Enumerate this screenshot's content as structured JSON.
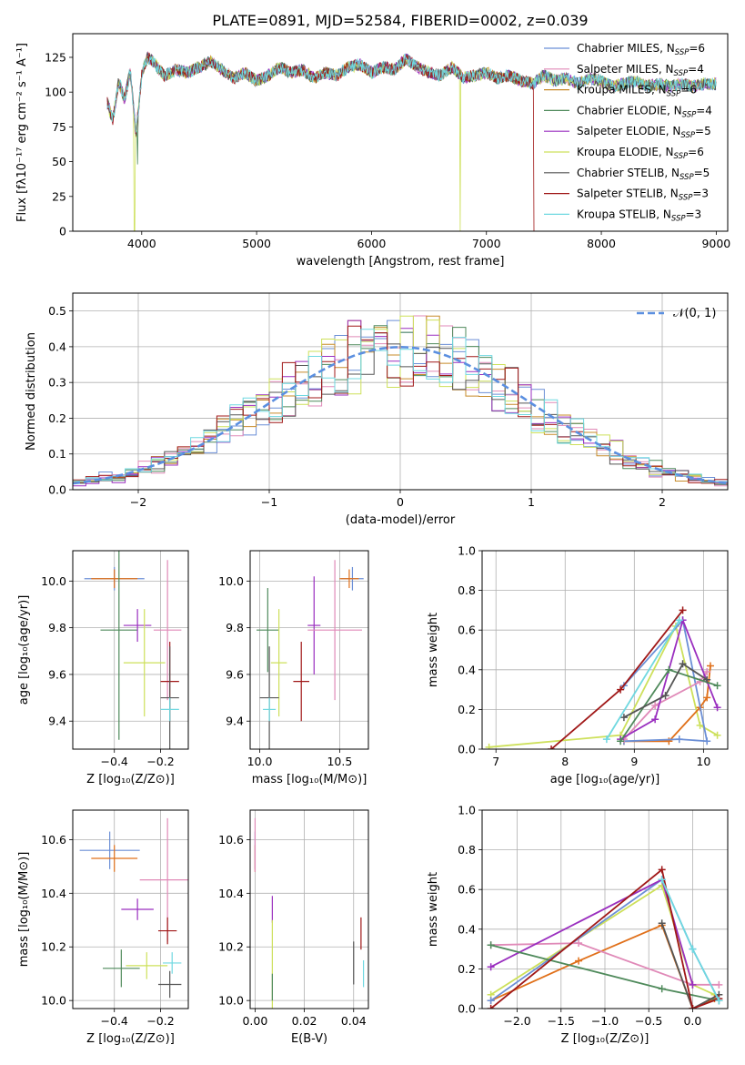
{
  "figure_title": "PLATE=0891, MJD=52584, FIBERID=0002, z=0.039",
  "legend_entries": [
    {
      "name": "Chabrier MILES, N",
      "sub": "SSP",
      "val": "=6",
      "color": "#6b8fd6"
    },
    {
      "name": "Salpeter MILES, N",
      "sub": "SSP",
      "val": "=4",
      "color": "#e08ab8"
    },
    {
      "name": "Kroupa MILES, N",
      "sub": "SSP",
      "val": "=6",
      "color": "#c78b2a"
    },
    {
      "name": "Chabrier ELODIE, N",
      "sub": "SSP",
      "val": "=4",
      "color": "#4f8a5b"
    },
    {
      "name": "Salpeter ELODIE, N",
      "sub": "SSP",
      "val": "=5",
      "color": "#9a2fbf"
    },
    {
      "name": "Kroupa ELODIE, N",
      "sub": "SSP",
      "val": "=6",
      "color": "#cde05a"
    },
    {
      "name": "Chabrier STELIB, N",
      "sub": "SSP",
      "val": "=5",
      "color": "#555555"
    },
    {
      "name": "Salpeter STELIB, N",
      "sub": "SSP",
      "val": "=3",
      "color": "#a01818"
    },
    {
      "name": "Kroupa STELIB, N",
      "sub": "SSP",
      "val": "=3",
      "color": "#6fd8e0"
    }
  ],
  "chart_data": [
    {
      "id": "spectrum",
      "type": "line",
      "xlabel": "wavelength [Angstrom, rest frame]",
      "ylabel": "Flux [fλ10⁻¹⁷ erg cm⁻² s⁻¹ A⁻¹]",
      "xlim": [
        3400,
        9100
      ],
      "ylim": [
        0,
        142
      ],
      "xticks": [
        4000,
        5000,
        6000,
        7000,
        8000,
        9000
      ],
      "yticks": [
        0,
        25,
        50,
        75,
        100,
        125
      ],
      "grid": false,
      "legend_position": "top-right",
      "series_envelope": {
        "x": [
          3700,
          3750,
          3800,
          3850,
          3900,
          3950,
          4000,
          4050,
          4100,
          4150,
          4200,
          4300,
          4400,
          4500,
          4600,
          4700,
          4800,
          4900,
          5000,
          5100,
          5200,
          5300,
          5400,
          5500,
          5600,
          5700,
          5800,
          5900,
          6000,
          6100,
          6200,
          6300,
          6400,
          6500,
          6600,
          6700,
          6800,
          6900,
          7000,
          7100,
          7200,
          7300,
          7400,
          7500,
          7600,
          7700,
          7800,
          7900,
          8000,
          8100,
          8200,
          8300,
          8400,
          8500,
          8600,
          8700,
          8800,
          8900,
          9000
        ],
        "y": [
          92,
          80,
          108,
          95,
          115,
          70,
          112,
          125,
          122,
          116,
          112,
          116,
          114,
          118,
          122,
          116,
          110,
          114,
          108,
          112,
          118,
          114,
          116,
          110,
          114,
          112,
          118,
          120,
          114,
          118,
          116,
          124,
          118,
          114,
          112,
          118,
          110,
          112,
          114,
          110,
          112,
          108,
          106,
          112,
          108,
          110,
          106,
          110,
          108,
          104,
          106,
          108,
          104,
          106,
          104,
          106,
          104,
          106,
          106
        ]
      },
      "dips": [
        [
          3935,
          0
        ],
        [
          3965,
          48
        ],
        [
          6770,
          0
        ],
        [
          7420,
          0
        ]
      ]
    },
    {
      "id": "residual-histogram",
      "type": "area",
      "xlabel": "(data-model)/error",
      "ylabel": "Normed distribution",
      "xlim": [
        -2.5,
        2.5
      ],
      "ylim": [
        0,
        0.55
      ],
      "xticks": [
        -2,
        -1,
        0,
        1,
        2
      ],
      "yticks": [
        0.0,
        0.1,
        0.2,
        0.3,
        0.4,
        0.5
      ],
      "grid": true,
      "legend_position": "top-right",
      "reference_curve": {
        "name": "𝒩(0, 1)",
        "mean": 0,
        "sigma": 1,
        "style": "dashed"
      },
      "histogram_bin_width": 0.1
    },
    {
      "id": "age-vs-metallicity",
      "type": "scatter",
      "xlabel": "Z [log₁₀(Z/Z⊙)]",
      "ylabel": "age  [log₁₀(age/yr)]",
      "xlim": [
        -0.58,
        -0.08
      ],
      "ylim": [
        9.28,
        10.13
      ],
      "xticks": [
        -0.4,
        -0.2
      ],
      "yticks": [
        9.4,
        9.6,
        9.8,
        10.0
      ],
      "grid": true,
      "points": [
        {
          "x": -0.4,
          "y": 10.01,
          "xerr": 0.13,
          "yerr": 0.05,
          "color": "#6b8fd6"
        },
        {
          "x": -0.4,
          "y": 10.01,
          "xerr": 0.1,
          "yerr": 0.04,
          "color": "#e0701a"
        },
        {
          "x": -0.38,
          "y": 9.79,
          "xerr": 0.08,
          "yerr": 0.47,
          "color": "#4f8a5b"
        },
        {
          "x": -0.3,
          "y": 9.81,
          "xerr": 0.06,
          "yerr": 0.07,
          "color": "#9a2fbf"
        },
        {
          "x": -0.27,
          "y": 9.65,
          "xerr": 0.09,
          "yerr": 0.23,
          "color": "#cde05a"
        },
        {
          "x": -0.17,
          "y": 9.79,
          "xerr": 0.06,
          "yerr": 0.3,
          "color": "#e08ab8"
        },
        {
          "x": -0.16,
          "y": 9.57,
          "xerr": 0.04,
          "yerr": 0.17,
          "color": "#a01818"
        },
        {
          "x": -0.16,
          "y": 9.5,
          "xerr": 0.04,
          "yerr": 0.22,
          "color": "#555555"
        },
        {
          "x": -0.16,
          "y": 9.45,
          "xerr": 0.04,
          "yerr": 0.05,
          "color": "#6fd8e0"
        }
      ]
    },
    {
      "id": "age-vs-mass",
      "type": "scatter",
      "xlabel": "mass [log₁₀(M/M⊙)]",
      "ylabel": "",
      "xlim": [
        9.94,
        10.68
      ],
      "ylim": [
        9.28,
        10.13
      ],
      "xticks": [
        10.0,
        10.5
      ],
      "yticks": [
        9.4,
        9.6,
        9.8,
        10.0
      ],
      "grid": true,
      "points": [
        {
          "x": 10.58,
          "y": 10.01,
          "xerr": 0.07,
          "yerr": 0.05,
          "color": "#6b8fd6"
        },
        {
          "x": 10.56,
          "y": 10.01,
          "xerr": 0.06,
          "yerr": 0.04,
          "color": "#e0701a"
        },
        {
          "x": 10.05,
          "y": 9.79,
          "xerr": 0.07,
          "yerr": 0.18,
          "color": "#4f8a5b"
        },
        {
          "x": 10.34,
          "y": 9.81,
          "xerr": 0.04,
          "yerr": 0.21,
          "color": "#9a2fbf"
        },
        {
          "x": 10.12,
          "y": 9.65,
          "xerr": 0.05,
          "yerr": 0.23,
          "color": "#cde05a"
        },
        {
          "x": 10.47,
          "y": 9.79,
          "xerr": 0.17,
          "yerr": 0.3,
          "color": "#e08ab8"
        },
        {
          "x": 10.26,
          "y": 9.57,
          "xerr": 0.05,
          "yerr": 0.17,
          "color": "#a01818"
        },
        {
          "x": 10.06,
          "y": 9.5,
          "xerr": 0.06,
          "yerr": 0.22,
          "color": "#555555"
        },
        {
          "x": 10.06,
          "y": 9.45,
          "xerr": 0.04,
          "yerr": 0.05,
          "color": "#6fd8e0"
        }
      ]
    },
    {
      "id": "mass-weight-vs-age",
      "type": "line",
      "xlabel": "age  [log₁₀(age/yr)]",
      "ylabel": "mass weight",
      "xlim": [
        6.8,
        10.35
      ],
      "ylim": [
        0,
        1.0
      ],
      "xticks": [
        7,
        8,
        9,
        10
      ],
      "yticks": [
        0.0,
        0.2,
        0.4,
        0.6,
        0.8,
        1.0
      ],
      "grid": true,
      "series": [
        {
          "color": "#cde05a",
          "x": [
            6.9,
            8.8,
            9.6,
            9.95,
            10.2
          ],
          "y": [
            0.01,
            0.07,
            0.62,
            0.12,
            0.07
          ]
        },
        {
          "color": "#e0701a",
          "x": [
            8.85,
            9.5,
            9.95,
            10.05,
            10.1
          ],
          "y": [
            0.04,
            0.04,
            0.21,
            0.26,
            0.42
          ]
        },
        {
          "color": "#6b8fd6",
          "x": [
            8.85,
            9.7,
            10.05,
            9.65,
            8.85
          ],
          "y": [
            0.32,
            0.65,
            0.04,
            0.05,
            0.04
          ]
        },
        {
          "color": "#e08ab8",
          "x": [
            8.85,
            9.3,
            9.95,
            10.05
          ],
          "y": [
            0.05,
            0.22,
            0.34,
            0.39
          ]
        },
        {
          "color": "#9a2fbf",
          "x": [
            8.8,
            9.3,
            9.7,
            10.2
          ],
          "y": [
            0.05,
            0.15,
            0.65,
            0.21
          ]
        },
        {
          "color": "#4f8a5b",
          "x": [
            8.8,
            9.5,
            10.2
          ],
          "y": [
            0.04,
            0.4,
            0.32
          ]
        },
        {
          "color": "#555555",
          "x": [
            8.85,
            9.45,
            9.7,
            10.05
          ],
          "y": [
            0.16,
            0.27,
            0.43,
            0.35
          ]
        },
        {
          "color": "#a01818",
          "x": [
            7.8,
            8.8,
            9.7
          ],
          "y": [
            0.0,
            0.3,
            0.7
          ]
        },
        {
          "color": "#6fd8e0",
          "x": [
            8.6,
            9.65
          ],
          "y": [
            0.05,
            0.65
          ]
        }
      ]
    },
    {
      "id": "mass-vs-metallicity",
      "type": "scatter",
      "xlabel": "Z [log₁₀(Z/Z⊙)]",
      "ylabel": "mass [log₁₀(M/M⊙)]",
      "xlim": [
        -0.58,
        -0.08
      ],
      "ylim": [
        9.97,
        10.71
      ],
      "xticks": [
        -0.4,
        -0.2
      ],
      "yticks": [
        10.0,
        10.2,
        10.4,
        10.6
      ],
      "grid": true,
      "points": [
        {
          "x": -0.42,
          "y": 10.56,
          "xerr": 0.13,
          "yerr": 0.07,
          "color": "#6b8fd6"
        },
        {
          "x": -0.4,
          "y": 10.53,
          "xerr": 0.1,
          "yerr": 0.05,
          "color": "#e0701a"
        },
        {
          "x": -0.37,
          "y": 10.12,
          "xerr": 0.08,
          "yerr": 0.07,
          "color": "#4f8a5b"
        },
        {
          "x": -0.3,
          "y": 10.34,
          "xerr": 0.07,
          "yerr": 0.04,
          "color": "#9a2fbf"
        },
        {
          "x": -0.26,
          "y": 10.13,
          "xerr": 0.09,
          "yerr": 0.05,
          "color": "#cde05a"
        },
        {
          "x": -0.17,
          "y": 10.45,
          "xerr": 0.12,
          "yerr": 0.23,
          "color": "#e08ab8"
        },
        {
          "x": -0.17,
          "y": 10.26,
          "xerr": 0.04,
          "yerr": 0.05,
          "color": "#a01818"
        },
        {
          "x": -0.16,
          "y": 10.06,
          "xerr": 0.05,
          "yerr": 0.05,
          "color": "#555555"
        },
        {
          "x": -0.15,
          "y": 10.14,
          "xerr": 0.04,
          "yerr": 0.04,
          "color": "#6fd8e0"
        }
      ]
    },
    {
      "id": "mass-vs-extinction",
      "type": "scatter",
      "xlabel": "E(B-V)",
      "ylabel": "",
      "xlim": [
        -0.002,
        0.046
      ],
      "ylim": [
        9.97,
        10.71
      ],
      "xticks": [
        0.0,
        0.02,
        0.04
      ],
      "yticks": [
        10.0,
        10.2,
        10.4,
        10.6
      ],
      "grid": true,
      "points": [
        {
          "x": 0.0,
          "y": 10.56,
          "xerr": 0,
          "yerr": 0.07,
          "color": "#6b8fd6"
        },
        {
          "x": 0.0,
          "y": 10.53,
          "xerr": 0,
          "yerr": 0.05,
          "color": "#e0701a"
        },
        {
          "x": 0.0,
          "y": 10.58,
          "xerr": 0,
          "yerr": 0.1,
          "color": "#e08ab8"
        },
        {
          "x": 0.007,
          "y": 10.34,
          "xerr": 0,
          "yerr": 0.05,
          "color": "#9a2fbf"
        },
        {
          "x": 0.007,
          "y": 10.13,
          "xerr": 0,
          "yerr": 0.17,
          "color": "#cde05a"
        },
        {
          "x": 0.007,
          "y": 10.05,
          "xerr": 0,
          "yerr": 0.05,
          "color": "#4f8a5b"
        },
        {
          "x": 0.04,
          "y": 10.14,
          "xerr": 0,
          "yerr": 0.08,
          "color": "#555555"
        },
        {
          "x": 0.043,
          "y": 10.25,
          "xerr": 0,
          "yerr": 0.06,
          "color": "#a01818"
        },
        {
          "x": 0.044,
          "y": 10.1,
          "xerr": 0,
          "yerr": 0.05,
          "color": "#6fd8e0"
        }
      ]
    },
    {
      "id": "mass-weight-vs-metallicity",
      "type": "line",
      "xlabel": "Z [log₁₀(Z/Z⊙)]",
      "ylabel": "mass weight",
      "xlim": [
        -2.4,
        0.4
      ],
      "ylim": [
        0,
        1.0
      ],
      "xticks": [
        -2.0,
        -1.5,
        -1.0,
        -0.5,
        0.0
      ],
      "yticks": [
        0.0,
        0.2,
        0.4,
        0.6,
        0.8,
        1.0
      ],
      "grid": true,
      "series": [
        {
          "color": "#cde05a",
          "x": [
            -2.3,
            -0.35,
            0.0,
            0.25
          ],
          "y": [
            0.07,
            0.62,
            0.12,
            0.07
          ]
        },
        {
          "color": "#e0701a",
          "x": [
            -2.3,
            -1.3,
            -0.35,
            -0.0,
            0.25
          ],
          "y": [
            0.04,
            0.24,
            0.42,
            0.0,
            0.05
          ]
        },
        {
          "color": "#6b8fd6",
          "x": [
            -2.3,
            -0.35,
            0.0,
            0.3
          ],
          "y": [
            0.04,
            0.65,
            0.3,
            0.04
          ]
        },
        {
          "color": "#e08ab8",
          "x": [
            -2.3,
            -1.3,
            0.0,
            0.3
          ],
          "y": [
            0.32,
            0.33,
            0.12,
            0.12
          ]
        },
        {
          "color": "#9a2fbf",
          "x": [
            -2.3,
            -0.35,
            0.0
          ],
          "y": [
            0.21,
            0.65,
            0.12
          ]
        },
        {
          "color": "#4f8a5b",
          "x": [
            -2.3,
            -0.35,
            0.3
          ],
          "y": [
            0.32,
            0.1,
            0.04
          ]
        },
        {
          "color": "#555555",
          "x": [
            -0.35,
            0.0,
            0.3
          ],
          "y": [
            0.43,
            0.0,
            0.07
          ]
        },
        {
          "color": "#a01818",
          "x": [
            -2.3,
            -0.35,
            0.0,
            0.3
          ],
          "y": [
            0.0,
            0.7,
            0.0,
            0.05
          ]
        },
        {
          "color": "#6fd8e0",
          "x": [
            -0.35,
            0.0,
            0.3
          ],
          "y": [
            0.65,
            0.3,
            0.04
          ]
        }
      ]
    }
  ]
}
